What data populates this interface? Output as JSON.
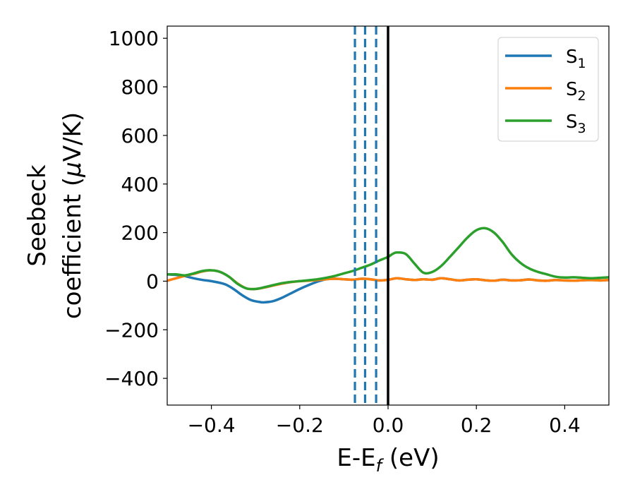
{
  "chart_data": {
    "type": "line",
    "xlabel": {
      "main": "E-E",
      "sub": "f",
      "suffix": " (eV)"
    },
    "ylabel": {
      "line1": "Seebeck",
      "line2_a": "coefficient  (",
      "line2_mu": "μ",
      "line2_b": "V/K)"
    },
    "xlim": [
      -0.5,
      0.5
    ],
    "ylim": [
      -510,
      1050
    ],
    "x_ticks": [
      {
        "value": -0.4,
        "label": "−0.4"
      },
      {
        "value": -0.2,
        "label": "−0.2"
      },
      {
        "value": 0.0,
        "label": "0.0"
      },
      {
        "value": 0.2,
        "label": "0.2"
      },
      {
        "value": 0.4,
        "label": "0.4"
      }
    ],
    "y_ticks": [
      {
        "value": -400,
        "label": "−400"
      },
      {
        "value": -200,
        "label": "−200"
      },
      {
        "value": 0,
        "label": "0"
      },
      {
        "value": 200,
        "label": "200"
      },
      {
        "value": 400,
        "label": "400"
      },
      {
        "value": 600,
        "label": "600"
      },
      {
        "value": 800,
        "label": "800"
      },
      {
        "value": 1000,
        "label": "1000"
      }
    ],
    "grid": false,
    "legend_position": "top-right",
    "vertical_lines": [
      {
        "x": 0.0,
        "style": "solid",
        "color": "#000000"
      },
      {
        "x": -0.075,
        "style": "dashed",
        "color": "#1f77b4"
      },
      {
        "x": -0.052,
        "style": "dashed",
        "color": "#1f77b4"
      },
      {
        "x": -0.027,
        "style": "dashed",
        "color": "#1f77b4"
      }
    ],
    "series": [
      {
        "name": "S",
        "sub": "1",
        "color": "#1f77b4",
        "x": [
          -0.5,
          -0.47,
          -0.44,
          -0.42,
          -0.4,
          -0.37,
          -0.35,
          -0.33,
          -0.31,
          -0.29,
          -0.28,
          -0.26,
          -0.24,
          -0.22,
          -0.2,
          -0.18,
          -0.16,
          -0.14,
          -0.12,
          -0.1,
          -0.08,
          -0.06,
          -0.04,
          -0.02,
          0.0,
          0.02,
          0.04,
          0.06,
          0.08,
          0.1,
          0.12,
          0.14,
          0.16,
          0.18,
          0.2,
          0.22,
          0.24,
          0.26,
          0.28,
          0.3,
          0.32,
          0.34,
          0.36,
          0.38,
          0.4,
          0.42,
          0.44,
          0.46,
          0.48,
          0.5
        ],
        "values": [
          28,
          24,
          12,
          5,
          0,
          -12,
          -32,
          -58,
          -78,
          -86,
          -87,
          -82,
          -68,
          -50,
          -32,
          -16,
          -2,
          8,
          10,
          8,
          6,
          10,
          8,
          3,
          6,
          12,
          8,
          5,
          8,
          6,
          12,
          8,
          3,
          6,
          8,
          4,
          2,
          6,
          3,
          4,
          7,
          3,
          2,
          5,
          3,
          2,
          4,
          5,
          3,
          5
        ]
      },
      {
        "name": "S",
        "sub": "2",
        "color": "#ff7f0e",
        "x": [
          -0.5,
          -0.48,
          -0.46,
          -0.44,
          -0.42,
          -0.4,
          -0.38,
          -0.36,
          -0.34,
          -0.32,
          -0.3,
          -0.28,
          -0.26,
          -0.24,
          -0.22,
          -0.2,
          -0.18,
          -0.16,
          -0.14,
          -0.12,
          -0.1,
          -0.08,
          -0.06,
          -0.04,
          -0.02,
          0.0,
          0.02,
          0.04,
          0.06,
          0.08,
          0.1,
          0.12,
          0.14,
          0.16,
          0.18,
          0.2,
          0.22,
          0.24,
          0.26,
          0.28,
          0.3,
          0.32,
          0.34,
          0.36,
          0.38,
          0.4,
          0.42,
          0.44,
          0.46,
          0.48,
          0.5
        ],
        "values": [
          2,
          12,
          22,
          30,
          40,
          45,
          38,
          18,
          -10,
          -30,
          -32,
          -26,
          -18,
          -10,
          -4,
          0,
          2,
          5,
          8,
          10,
          8,
          6,
          10,
          8,
          3,
          6,
          12,
          8,
          5,
          8,
          6,
          12,
          8,
          3,
          6,
          8,
          4,
          2,
          6,
          3,
          4,
          7,
          3,
          2,
          5,
          3,
          2,
          4,
          5,
          3,
          5
        ]
      },
      {
        "name": "S",
        "sub": "3",
        "color": "#2ca02c",
        "x": [
          -0.5,
          -0.48,
          -0.46,
          -0.44,
          -0.42,
          -0.4,
          -0.38,
          -0.36,
          -0.34,
          -0.32,
          -0.3,
          -0.28,
          -0.26,
          -0.24,
          -0.22,
          -0.2,
          -0.18,
          -0.16,
          -0.14,
          -0.12,
          -0.1,
          -0.08,
          -0.06,
          -0.04,
          -0.02,
          0.0,
          0.01,
          0.02,
          0.04,
          0.06,
          0.08,
          0.1,
          0.12,
          0.14,
          0.16,
          0.18,
          0.2,
          0.22,
          0.24,
          0.26,
          0.28,
          0.3,
          0.32,
          0.34,
          0.36,
          0.38,
          0.4,
          0.42,
          0.44,
          0.46,
          0.48,
          0.5
        ],
        "values": [
          28,
          28,
          24,
          32,
          42,
          45,
          38,
          18,
          -12,
          -30,
          -32,
          -25,
          -16,
          -8,
          -3,
          0,
          4,
          8,
          14,
          22,
          32,
          42,
          55,
          68,
          85,
          100,
          112,
          118,
          112,
          72,
          35,
          38,
          62,
          100,
          140,
          180,
          210,
          218,
          200,
          160,
          110,
          75,
          52,
          38,
          28,
          18,
          15,
          16,
          14,
          12,
          14,
          16
        ]
      }
    ]
  }
}
